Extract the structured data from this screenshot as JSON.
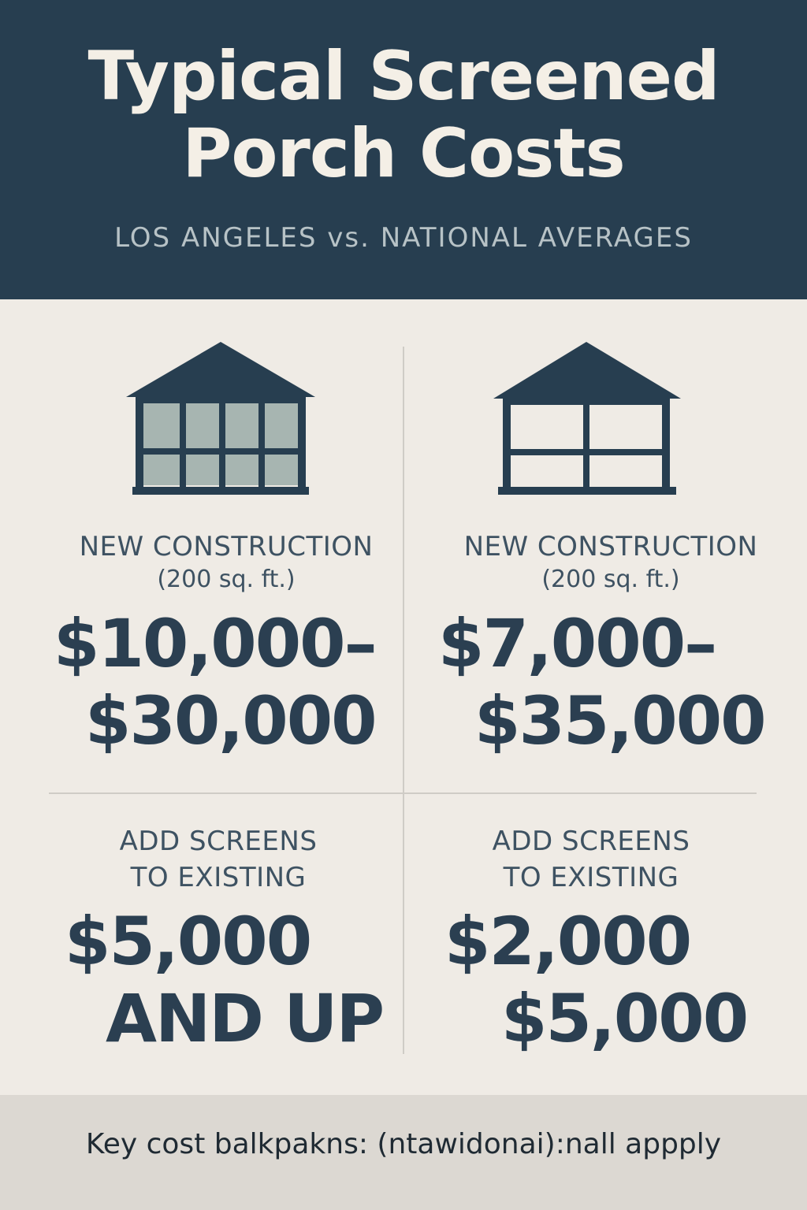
{
  "header": {
    "title_line1": "Typical Screened",
    "title_line2": "Porch Costs",
    "subtitle": "LOS ANGELES vs. NATIONAL AVERAGES"
  },
  "cells": {
    "la_new": {
      "label": "NEW CONSTRUCTION",
      "sublabel": "(200 sq. ft.)",
      "price_line1": "$10,000–",
      "price_line2": "$30,000"
    },
    "national_new": {
      "label": "NEW CONSTRUCTION",
      "sublabel": "(200 sq. ft.)",
      "price_line1": "$7,000–",
      "price_line2": "$35,000"
    },
    "la_screens": {
      "label_line1": "ADD SCREENS",
      "label_line2": "TO EXISTING",
      "price_line1": "$5,000",
      "price_line2": "AND UP"
    },
    "national_screens": {
      "label_line1": "ADD SCREENS",
      "label_line2": "TO EXISTING",
      "price_line1": "$2,000",
      "price_line2": "$5,000"
    }
  },
  "footer": {
    "text": "Key cost balkpakns: (ntawidonai):nall appply"
  },
  "icons": {
    "left": "screened-porch-icon",
    "right": "porch-frame-icon"
  },
  "colors": {
    "navy": "#273e50",
    "background": "#efebe5",
    "screen_fill": "#a7b5b1",
    "footer_bg": "#dcd8d2"
  }
}
